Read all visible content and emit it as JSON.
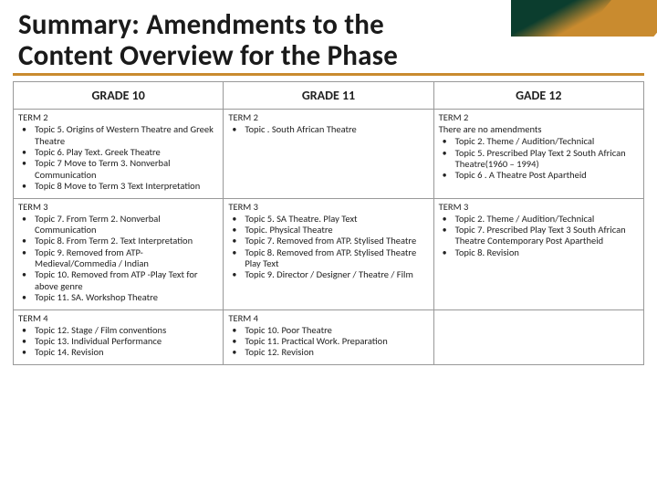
{
  "title_line1": "Summary: Amendments to the",
  "title_line2": "Content Overview for the Phase",
  "headers": [
    "GRADE 10",
    "GRADE 11",
    "GADE 12"
  ],
  "rows": [
    {
      "c0": {
        "term": "TERM 2",
        "items": [
          "Topic 5. Origins of Western Theatre and Greek Theatre",
          "Topic 6. Play Text. Greek Theatre",
          "Topic 7 Move to Term 3. Nonverbal Communication",
          "Topic 8 Move to Term 3  Text Interpretation"
        ]
      },
      "c1": {
        "term": "TERM 2",
        "items": [
          "Topic . South African Theatre"
        ]
      },
      "c2": {
        "term": "TERM 2",
        "subline": "There are no amendments",
        "items": [
          "Topic 2. Theme / Audition/Technical",
          "Topic 5. Prescribed Play Text 2 South African Theatre(1960 – 1994)",
          "Topic 6 . A Theatre Post Apartheid"
        ]
      }
    },
    {
      "c0": {
        "term": "TERM 3",
        "items": [
          "Topic 7. From Term 2. Nonverbal Communication",
          "Topic 8. From Term 2. Text Interpretation",
          "Topic 9. Removed from ATP-Medieval/Commedia / Indian",
          "Topic 10. Removed from ATP -Play Text for above genre",
          "Topic 11. SA. Workshop Theatre"
        ]
      },
      "c1": {
        "term": "TERM 3",
        "items": [
          "Topic 5. SA Theatre. Play Text",
          "Topic. Physical Theatre",
          "Topic 7.  Removed from ATP. Stylised Theatre",
          "Topic 8. Removed from ATP. Stylised Theatre Play Text",
          "Topic 9. Director / Designer / Theatre / Film"
        ]
      },
      "c2": {
        "term": "TERM 3",
        "items": [
          "Topic 2. Theme /  Audition/Technical",
          "Topic 7. Prescribed Play Text 3  South African Theatre Contemporary Post Apartheid",
          "Topic 8. Revision"
        ]
      }
    },
    {
      "c0": {
        "term": "TERM 4",
        "items": [
          "Topic 12. Stage / Film conventions",
          "Topic 13. Individual Performance",
          "Topic 14. Revision"
        ]
      },
      "c1": {
        "term": "TERM 4",
        "items": [
          "Topic 10. Poor Theatre",
          "Topic 11. Practical Work. Preparation",
          "Topic 12. Revision"
        ]
      },
      "c2": {
        "term": "",
        "items": []
      }
    }
  ]
}
